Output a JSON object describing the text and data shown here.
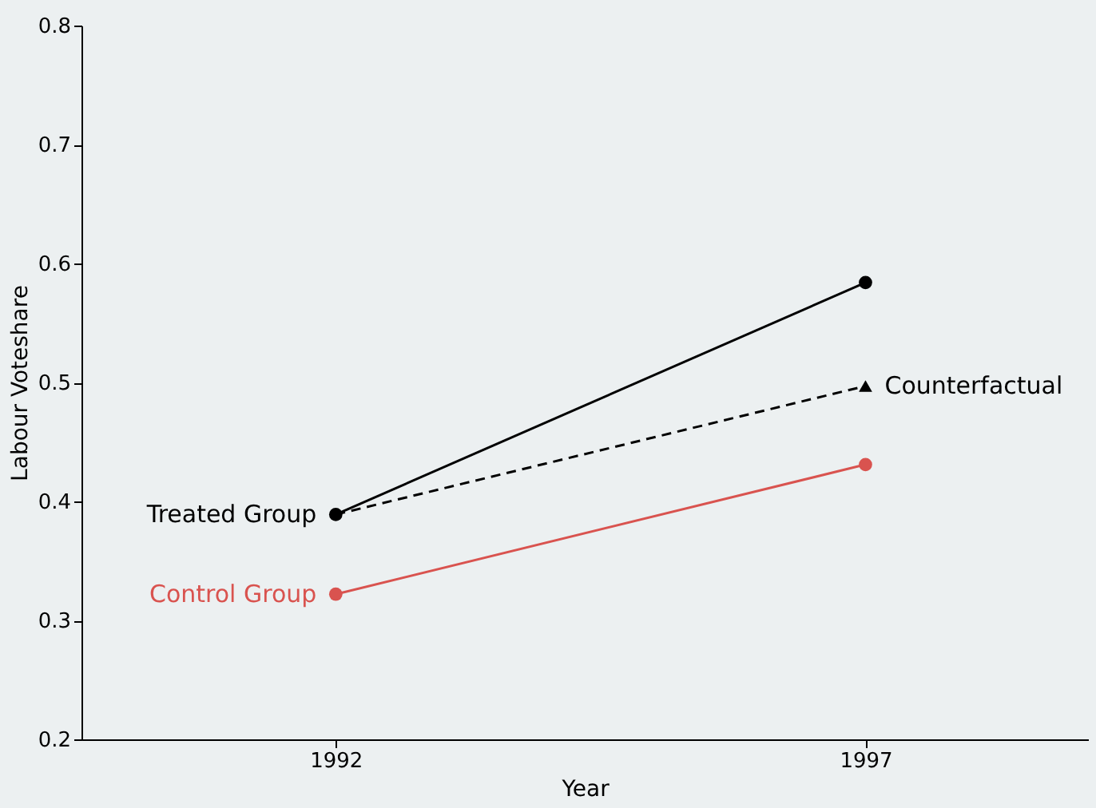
{
  "chart_data": {
    "type": "line",
    "xlabel": "Year",
    "ylabel": "Labour Voteshare",
    "x": [
      1992,
      1997
    ],
    "xlim": [
      1989.6,
      1999.1
    ],
    "xticks": [
      1992,
      1997
    ],
    "ylim": [
      0.2,
      0.8
    ],
    "yticks": [
      0.2,
      0.3,
      0.4,
      0.5,
      0.6,
      0.7,
      0.8
    ],
    "grid": false,
    "legend": false,
    "series": [
      {
        "name": "Treated Group",
        "color": "#000000",
        "values": [
          0.389,
          0.584
        ],
        "marker": "circle",
        "line_style": "solid"
      },
      {
        "name": "Counterfactual",
        "color": "#000000",
        "values": [
          0.389,
          0.497
        ],
        "marker": "triangle",
        "line_style": "dashed"
      },
      {
        "name": "Control Group",
        "color": "#d9534f",
        "values": [
          0.322,
          0.431
        ],
        "marker": "circle",
        "line_style": "solid"
      }
    ]
  }
}
